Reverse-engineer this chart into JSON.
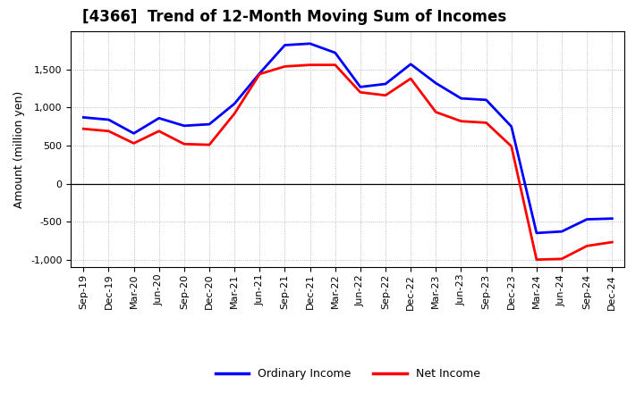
{
  "title": "[4366]  Trend of 12-Month Moving Sum of Incomes",
  "ylabel": "Amount (million yen)",
  "x_labels": [
    "Sep-19",
    "Dec-19",
    "Mar-20",
    "Jun-20",
    "Sep-20",
    "Dec-20",
    "Mar-21",
    "Jun-21",
    "Sep-21",
    "Dec-21",
    "Mar-22",
    "Jun-22",
    "Sep-22",
    "Dec-22",
    "Mar-23",
    "Jun-23",
    "Sep-23",
    "Dec-23",
    "Mar-24",
    "Jun-24",
    "Sep-24",
    "Dec-24"
  ],
  "ordinary_income": [
    870,
    840,
    660,
    860,
    760,
    780,
    1050,
    1450,
    1820,
    1840,
    1720,
    1270,
    1310,
    1570,
    1320,
    1120,
    1100,
    750,
    -650,
    -630,
    -470,
    -460
  ],
  "net_income": [
    720,
    690,
    530,
    690,
    520,
    510,
    920,
    1440,
    1540,
    1560,
    1560,
    1200,
    1160,
    1380,
    940,
    820,
    800,
    490,
    -1000,
    -990,
    -820,
    -770
  ],
  "ordinary_color": "#0000FF",
  "net_color": "#FF0000",
  "ylim": [
    -1100,
    2000
  ],
  "yticks": [
    -1000,
    -500,
    0,
    500,
    1000,
    1500
  ],
  "background_color": "#FFFFFF",
  "plot_bg_color": "#FFFFFF",
  "grid_color": "#AAAAAA",
  "line_width": 2.0,
  "title_fontsize": 12,
  "ylabel_fontsize": 9,
  "tick_fontsize": 8,
  "legend_labels": [
    "Ordinary Income",
    "Net Income"
  ],
  "legend_fontsize": 9
}
